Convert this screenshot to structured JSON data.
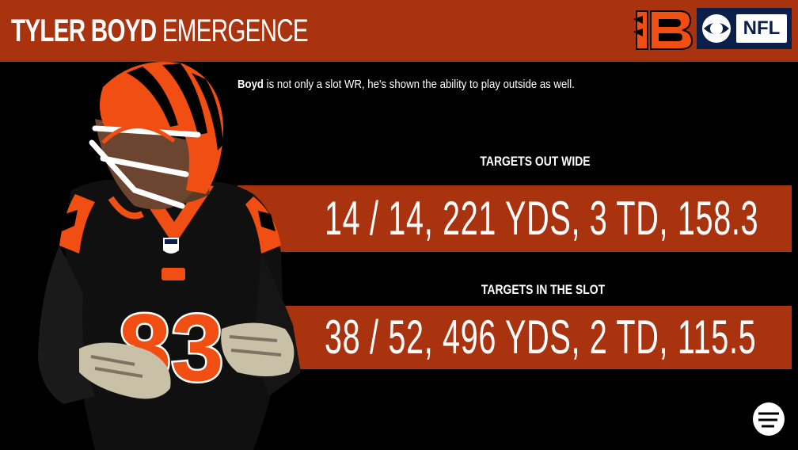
{
  "header": {
    "title_bold": "TYLER BOYD",
    "title_light": "EMERGENCE",
    "nfl_badge": "NFL"
  },
  "intro": {
    "name": "Boyd",
    "text": " is not only a slot WR, he's shown the ability to play outside as well."
  },
  "stats": {
    "out_wide": {
      "label": "TARGETS OUT WIDE",
      "value": "14 / 14, 221 YDS, 3 TD, 158.3"
    },
    "slot": {
      "label": "TARGETS IN THE SLOT",
      "value": "38 / 52, 496 YDS, 2 TD, 115.5"
    }
  },
  "player": {
    "jersey_number": "83"
  },
  "colors": {
    "accent": "#a9320f",
    "background": "#000000",
    "bengals_orange": "#f04e12",
    "cbs_navy": "#0a1f4a"
  },
  "icons": {
    "team_logo": "bengals-logo-icon",
    "network_logo": "cbs-eye-icon",
    "watermark": "pff-logo-icon"
  }
}
